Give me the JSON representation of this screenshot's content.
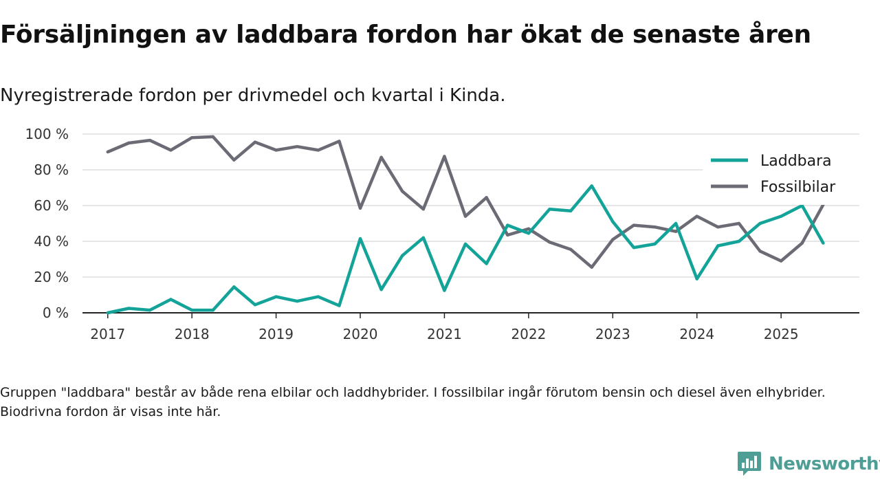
{
  "header": {
    "title": "Försäljningen av laddbara fordon har ökat de senaste åren",
    "subtitle": "Nyregistrerade fordon per drivmedel och kvartal i Kinda."
  },
  "footnote": "Gruppen \"laddbara\" består av både rena elbilar och laddhybrider. I fossilbilar ingår förutom bensin och diesel även elhybrider. Biodrivna fordon är visas inte här.",
  "brand": {
    "name": "Newsworthy",
    "logo_icon": "newsworthy-logo-icon"
  },
  "colors": {
    "laddbara": "#14a399",
    "fossilbilar": "#6b6b75",
    "grid": "#dddddd",
    "axis": "#222222",
    "brand": "#4e9e96"
  },
  "chart_data": {
    "type": "line",
    "title": "Försäljningen av laddbara fordon har ökat de senaste åren",
    "xlabel": "",
    "ylabel": "",
    "x_unit": "year (quarterly points)",
    "xlim": [
      2016.7,
      2025.93
    ],
    "ylim": [
      0,
      100
    ],
    "y_ticks": [
      0,
      20,
      40,
      60,
      80,
      100
    ],
    "y_tick_labels": [
      "0 %",
      "20 %",
      "40 %",
      "60 %",
      "80 %",
      "100 %"
    ],
    "x_ticks": [
      2017,
      2018,
      2019,
      2020,
      2021,
      2022,
      2023,
      2024,
      2025
    ],
    "x_tick_labels": [
      "2017",
      "2018",
      "2019",
      "2020",
      "2021",
      "2022",
      "2023",
      "2024",
      "2025"
    ],
    "grid": true,
    "legend_position": "top-right",
    "x": [
      2017,
      2017.25,
      2017.5,
      2017.75,
      2018,
      2018.25,
      2018.5,
      2018.75,
      2019,
      2019.25,
      2019.5,
      2019.75,
      2020,
      2020.25,
      2020.5,
      2020.75,
      2021,
      2021.25,
      2021.5,
      2021.75,
      2022,
      2022.25,
      2022.5,
      2022.75,
      2023,
      2023.25,
      2023.5,
      2023.75,
      2024,
      2024.25,
      2024.5,
      2024.75,
      2025,
      2025.25,
      2025.5
    ],
    "series": [
      {
        "name": "Laddbara",
        "color": "#14a399",
        "values": [
          0,
          2.5,
          1.5,
          7.5,
          1.5,
          1.5,
          14.5,
          4.5,
          9,
          6.5,
          9,
          4,
          41.5,
          13,
          32,
          42,
          12.5,
          38.5,
          27.5,
          49,
          44.5,
          58,
          57,
          71,
          51,
          36.5,
          38.5,
          50,
          19,
          37.5,
          40,
          50,
          54,
          60,
          39
        ]
      },
      {
        "name": "Fossilbilar",
        "color": "#6b6b75",
        "values": [
          90,
          95,
          96.5,
          91,
          98,
          98.5,
          85.5,
          95.5,
          91,
          93,
          91,
          96,
          58.5,
          87,
          68,
          58,
          87.5,
          54,
          64.5,
          43.5,
          47,
          39.5,
          35.5,
          25.5,
          41,
          49,
          48,
          45.5,
          54,
          48,
          50,
          34.5,
          29,
          39,
          60.5
        ]
      }
    ]
  }
}
